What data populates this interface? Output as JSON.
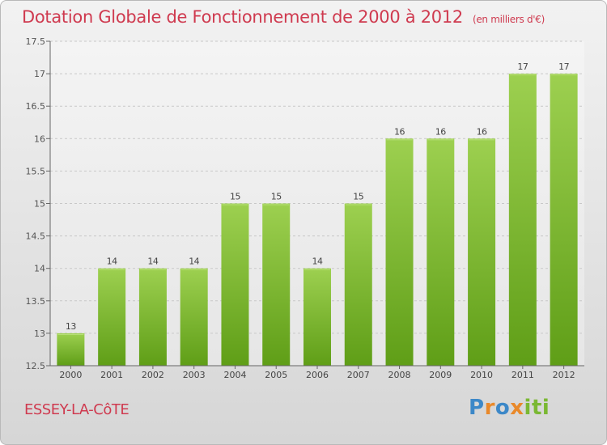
{
  "title": "Dotation Globale de Fonctionnement de 2000 à 2012",
  "subtitle": "(en milliers d'€)",
  "place_name": "ESSEY-LA-CôTE",
  "logo_text": "Proxiti",
  "colors": {
    "title": "#cf3a4f",
    "bar_light": "#9dd050",
    "bar_dark": "#5f9e17",
    "grid": "#c8c8c8",
    "axis": "#666666"
  },
  "chart_data": {
    "type": "bar",
    "title": "Dotation Globale de Fonctionnement de 2000 à 2012",
    "subtitle": "(en milliers d'€)",
    "xlabel": "",
    "ylabel": "",
    "categories": [
      "2000",
      "2001",
      "2002",
      "2003",
      "2004",
      "2005",
      "2006",
      "2007",
      "2008",
      "2009",
      "2010",
      "2011",
      "2012"
    ],
    "values": [
      13,
      14,
      14,
      14,
      15,
      15,
      14,
      15,
      16,
      16,
      16,
      17,
      17
    ],
    "data_labels": [
      "13",
      "14",
      "14",
      "14",
      "15",
      "15",
      "14",
      "15",
      "16",
      "16",
      "16",
      "17",
      "17"
    ],
    "ylim": [
      12.5,
      17.5
    ],
    "yticks": [
      12.5,
      13,
      13.5,
      14,
      14.5,
      15,
      15.5,
      16,
      16.5,
      17,
      17.5
    ],
    "ytick_labels": [
      "12.5",
      "13",
      "13.5",
      "14",
      "14.5",
      "15",
      "15.5",
      "16",
      "16.5",
      "17",
      "17.5"
    ],
    "grid": true,
    "legend": "none"
  }
}
